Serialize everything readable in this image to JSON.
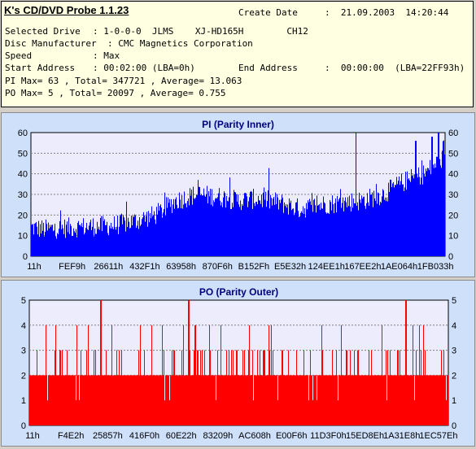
{
  "header": {
    "title": "K's CD/DVD Probe 1.1.23",
    "create_date_label": "Create Date",
    "create_date_value": ":  21.09.2003  14:20:44",
    "selected_drive_label": "Selected Drive",
    "selected_drive_value": ": 1-0-0-0  JLMS    XJ-HD165H        CH12",
    "disc_manufacturer_label": "Disc Manufacturer",
    "disc_manufacturer_value": ": CMC Magnetics Corporation",
    "speed_label": "Speed",
    "speed_value": ": Max",
    "start_address_label": "Start Address",
    "start_address_value": ": 00:02:00 (LBA=0h)",
    "end_address_label": "End Address",
    "end_address_value": ":  00:00:00  (LBA=22FF93h)",
    "pi_stats": "PI Max= 63 , Total= 347721 , Average= 13.063",
    "po_stats": "PO Max= 5 , Total= 20097 , Average= 0.755"
  },
  "colors": {
    "pi_bar": "#0000ff",
    "po_bar": "#ff0000",
    "panel_bg": "#cfe0fb",
    "plot_bg": "#ececfc",
    "title_color": "#00007f"
  },
  "chart_data": [
    {
      "type": "bar",
      "title": "PI (Parity Inner)",
      "ylim": [
        0,
        60
      ],
      "yticks": [
        0,
        10,
        20,
        30,
        40,
        50,
        60
      ],
      "tick_labels": [
        "11h",
        "FEF9h",
        "26611h",
        "432F1h",
        "63958h",
        "870F6h",
        "B152Fh",
        "E5E32h",
        "124EE1h",
        "167EE2h",
        "1AE064h",
        "1FB033h"
      ],
      "profile_x": [
        0,
        0.03,
        0.1,
        0.2,
        0.25,
        0.3,
        0.35,
        0.4,
        0.45,
        0.5,
        0.55,
        0.6,
        0.65,
        0.7,
        0.75,
        0.8,
        0.85,
        0.9,
        0.95,
        0.98,
        1
      ],
      "profile_y": [
        14,
        13,
        14,
        15,
        17,
        20,
        27,
        30,
        29,
        27,
        28,
        26,
        23,
        25,
        26,
        27,
        30,
        36,
        40,
        45,
        48
      ],
      "spikes": [
        {
          "x": 0.785,
          "y": 60
        },
        {
          "x": 0.985,
          "y": 63
        },
        {
          "x": 0.97,
          "y": 58
        },
        {
          "x": 0.93,
          "y": 56
        }
      ],
      "max": 63
    },
    {
      "type": "bar",
      "title": "PO (Parity Outer)",
      "ylim": [
        0,
        5
      ],
      "yticks": [
        0,
        1,
        2,
        3,
        4,
        5
      ],
      "tick_labels": [
        "11h",
        "F4E2h",
        "25857h",
        "416F0h",
        "60E22h",
        "83209h",
        "AC608h",
        "E00F6h",
        "11D3F0h",
        "15ED8Eh",
        "1A31E8h",
        "1EC57Eh"
      ],
      "baseline": 2,
      "spikes_at_5": [
        0.17,
        0.38,
        0.9
      ],
      "max": 5
    }
  ]
}
